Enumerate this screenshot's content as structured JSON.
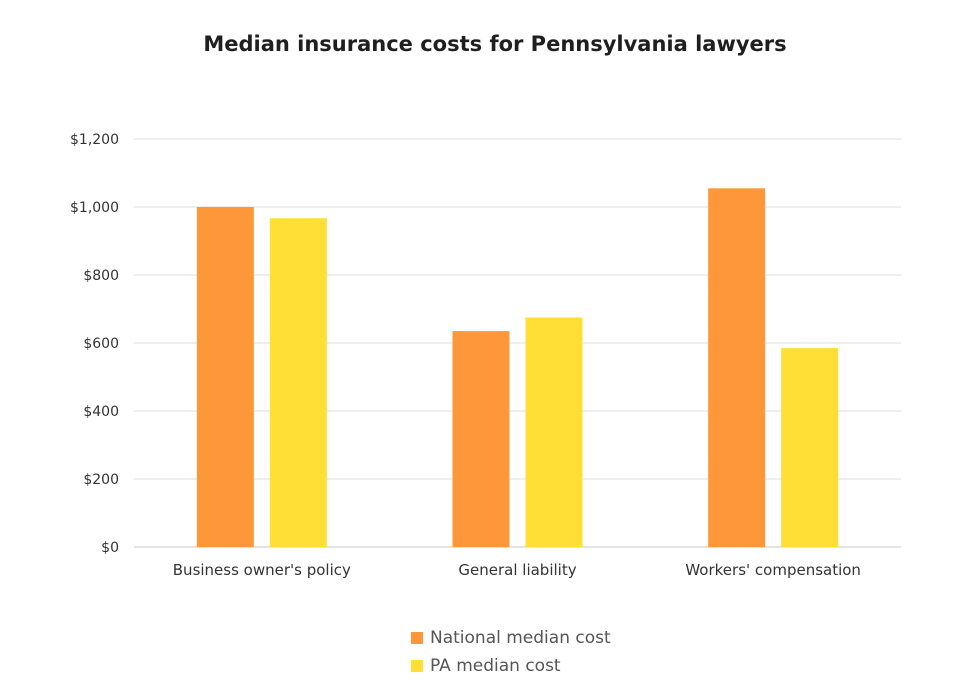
{
  "chart_data": {
    "type": "bar",
    "title": "Median insurance costs for Pennsylvania lawyers",
    "categories": [
      "Business owner's policy",
      "General liability",
      "Workers' compensation"
    ],
    "series": [
      {
        "name": "National median cost",
        "color": "#fd973a",
        "values": [
          1000,
          635,
          1055
        ]
      },
      {
        "name": "PA median cost",
        "color": "#ffdf36",
        "values": [
          967,
          675,
          585
        ]
      }
    ],
    "ylim": [
      0,
      1200
    ],
    "yticks": [
      0,
      200,
      400,
      600,
      800,
      1000,
      1200
    ],
    "ytick_labels": [
      "$0",
      "$200",
      "$400",
      "$600",
      "$800",
      "$1,000",
      "$1,200"
    ],
    "grid": true,
    "legend_position": "bottom"
  }
}
